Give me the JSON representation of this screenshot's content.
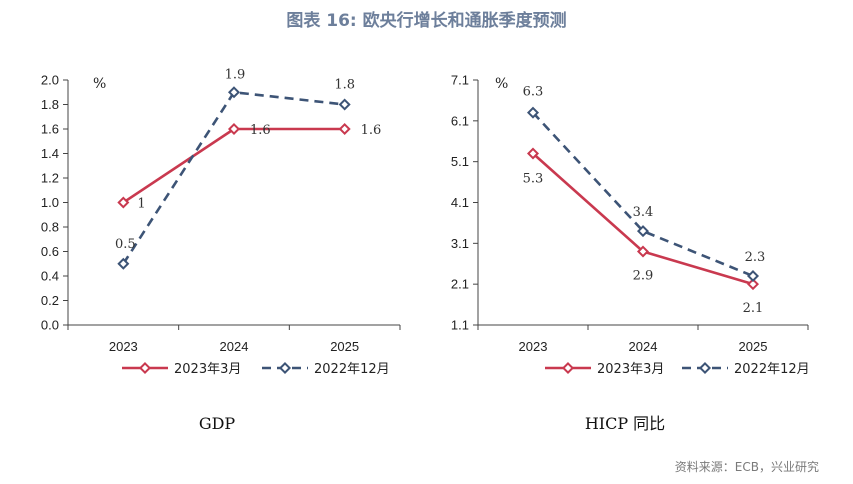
{
  "figure": {
    "title": "图表 16: 欧央行增长和通胀季度预测",
    "source": "资料来源：ECB，兴业研究"
  },
  "colors": {
    "red": "#c9394f",
    "blue": "#3d5476",
    "axis": "#444444"
  },
  "chart_data": [
    {
      "type": "line",
      "caption": "GDP",
      "unit_label": "%",
      "categories": [
        "2023",
        "2024",
        "2025"
      ],
      "ylim": [
        0.0,
        2.0
      ],
      "yticks": [
        "0.0",
        "0.2",
        "0.4",
        "0.6",
        "0.8",
        "1.0",
        "1.2",
        "1.4",
        "1.6",
        "1.8",
        "2.0"
      ],
      "grid": false,
      "legend_position": "bottom",
      "series": [
        {
          "name": "2023年3月",
          "style": "solid",
          "color": "#c9394f",
          "values": [
            1.0,
            1.6,
            1.6
          ],
          "labels": [
            "1",
            "1.6",
            "1.6"
          ]
        },
        {
          "name": "2022年12月",
          "style": "dashed",
          "color": "#3d5476",
          "values": [
            0.5,
            1.9,
            1.8
          ],
          "labels": [
            "0.5",
            "1.9",
            "1.8"
          ]
        }
      ]
    },
    {
      "type": "line",
      "caption": "HICP 同比",
      "unit_label": "%",
      "categories": [
        "2023",
        "2024",
        "2025"
      ],
      "ylim": [
        1.1,
        7.1
      ],
      "yticks": [
        "1.1",
        "2.1",
        "3.1",
        "4.1",
        "5.1",
        "6.1",
        "7.1"
      ],
      "grid": false,
      "legend_position": "bottom",
      "series": [
        {
          "name": "2023年3月",
          "style": "solid",
          "color": "#c9394f",
          "values": [
            5.3,
            2.9,
            2.1
          ],
          "labels": [
            "5.3",
            "2.9",
            "2.1"
          ]
        },
        {
          "name": "2022年12月",
          "style": "dashed",
          "color": "#3d5476",
          "values": [
            6.3,
            3.4,
            2.3
          ],
          "labels": [
            "6.3",
            "3.4",
            "2.3"
          ]
        }
      ]
    }
  ]
}
